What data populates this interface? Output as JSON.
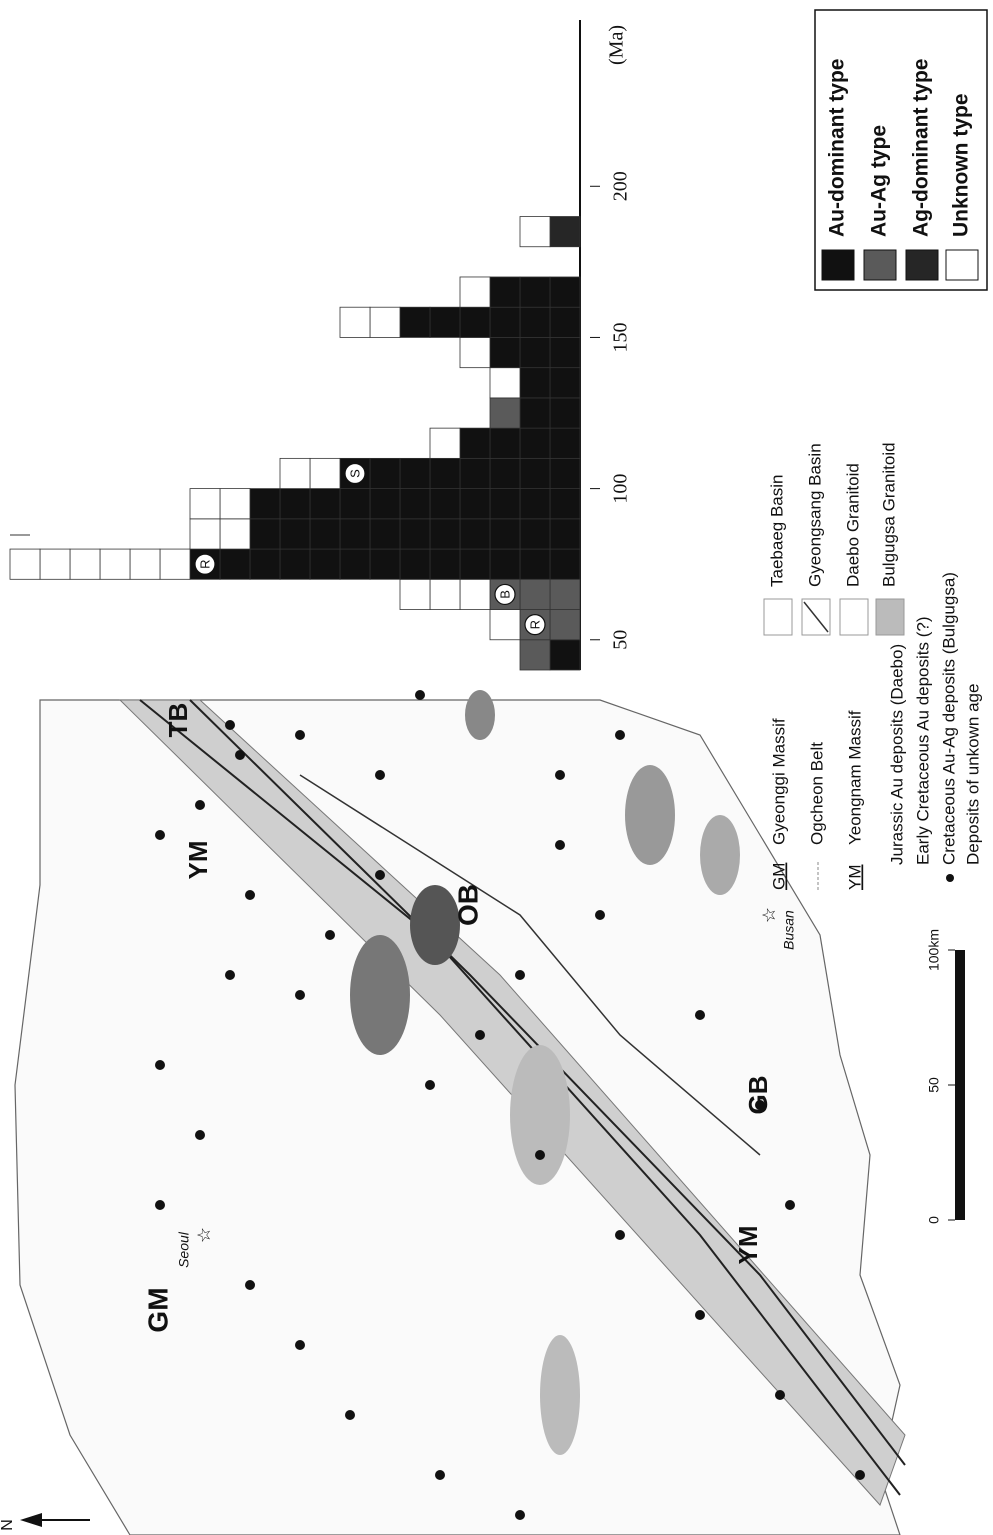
{
  "legend": {
    "items": [
      "Au-dominant type",
      "Au-Ag type",
      "Ag-dominant type",
      "Unknown type"
    ],
    "colors": [
      "#111111",
      "#5a5a5a",
      "#262626",
      "#ffffff"
    ]
  },
  "histogram": {
    "xlabel": "(Ma)",
    "xlim": [
      40,
      255
    ],
    "xticks": [
      50,
      100,
      150,
      200
    ],
    "bins": [
      {
        "age": 45,
        "counts": [
          1,
          1,
          0,
          0
        ]
      },
      {
        "age": 55,
        "counts": [
          0,
          2,
          0,
          1
        ],
        "marker": "R"
      },
      {
        "age": 65,
        "counts": [
          0,
          3,
          0,
          3
        ],
        "marker": "B"
      },
      {
        "age": 75,
        "counts": [
          13,
          0,
          0,
          6
        ],
        "marker": "R"
      },
      {
        "age": 85,
        "counts": [
          11,
          0,
          0,
          2
        ]
      },
      {
        "age": 95,
        "counts": [
          11,
          0,
          0,
          2
        ]
      },
      {
        "age": 105,
        "counts": [
          8,
          0,
          0,
          2
        ],
        "marker": "S"
      },
      {
        "age": 115,
        "counts": [
          4,
          0,
          0,
          1
        ]
      },
      {
        "age": 125,
        "counts": [
          2,
          1,
          0,
          0
        ]
      },
      {
        "age": 135,
        "counts": [
          2,
          0,
          0,
          1
        ]
      },
      {
        "age": 145,
        "counts": [
          3,
          0,
          0,
          1
        ]
      },
      {
        "age": 155,
        "counts": [
          6,
          0,
          0,
          2
        ]
      },
      {
        "age": 165,
        "counts": [
          3,
          0,
          0,
          1
        ]
      },
      {
        "age": 185,
        "counts": [
          0,
          0,
          1,
          1
        ]
      }
    ]
  },
  "map": {
    "labels": [
      "GM",
      "Seoul",
      "OB",
      "YM",
      "TB",
      "GB",
      "YM",
      "Busan"
    ],
    "north": "N",
    "scale": [
      0,
      50,
      {
        "value": 100,
        "label": "100km"
      }
    ]
  },
  "units": [
    {
      "code": "GM",
      "name": "Gyeonggi Massif"
    },
    {
      "name": "Ogcheon Belt"
    },
    {
      "code": "YM",
      "name": "Yeongnam Massif"
    }
  ],
  "rocks": [
    "Taebaeg Basin",
    "Gyeongsang Basin",
    "Daebo Granitoid",
    "Bulgugsa Granitoid"
  ],
  "deposits": [
    "Jurassic Au deposits (Daebo)",
    "Early Cretaceous Au deposits (?)",
    "Cretaceous Au-Ag deposits (Bulgugsa)",
    "Deposits of unkown age"
  ]
}
